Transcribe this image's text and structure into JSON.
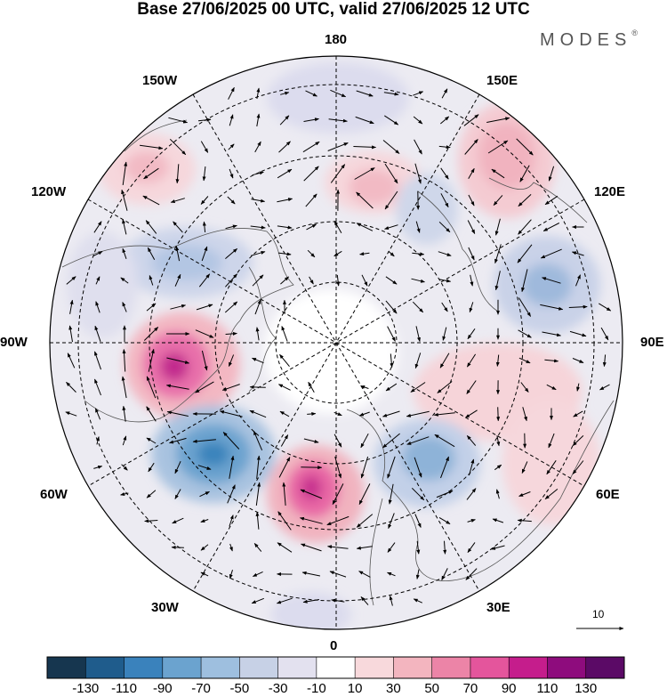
{
  "header": {
    "title": "Base 27/06/2025 00 UTC, valid 27/06/2025 12 UTC",
    "brand": "MODES",
    "brand_mark": "®"
  },
  "map": {
    "projection": "north-polar-stereographic",
    "longitude_labels": {
      "180": "180",
      "150E": "150E",
      "120E": "120E",
      "90E": "90E",
      "60E": "60E",
      "30E": "30E",
      "0": "0",
      "30W": "30W",
      "60W": "60W",
      "90W": "90W",
      "120W": "120W",
      "150W": "150W"
    },
    "reference_vector": "10"
  },
  "colorbar": {
    "ticks": [
      "-130",
      "-110",
      "-90",
      "-70",
      "-50",
      "-30",
      "-10",
      "10",
      "30",
      "50",
      "70",
      "90",
      "110",
      "130"
    ],
    "colors": [
      "#16364f",
      "#1f5c8c",
      "#3a82bc",
      "#6ba3cf",
      "#9ebfdf",
      "#c7d1e6",
      "#e3e1ef",
      "#ffffff",
      "#f8d9dc",
      "#f3b5bf",
      "#ec84a7",
      "#e4559c",
      "#c51d8c",
      "#8e0c7d",
      "#5b0a66"
    ]
  }
}
